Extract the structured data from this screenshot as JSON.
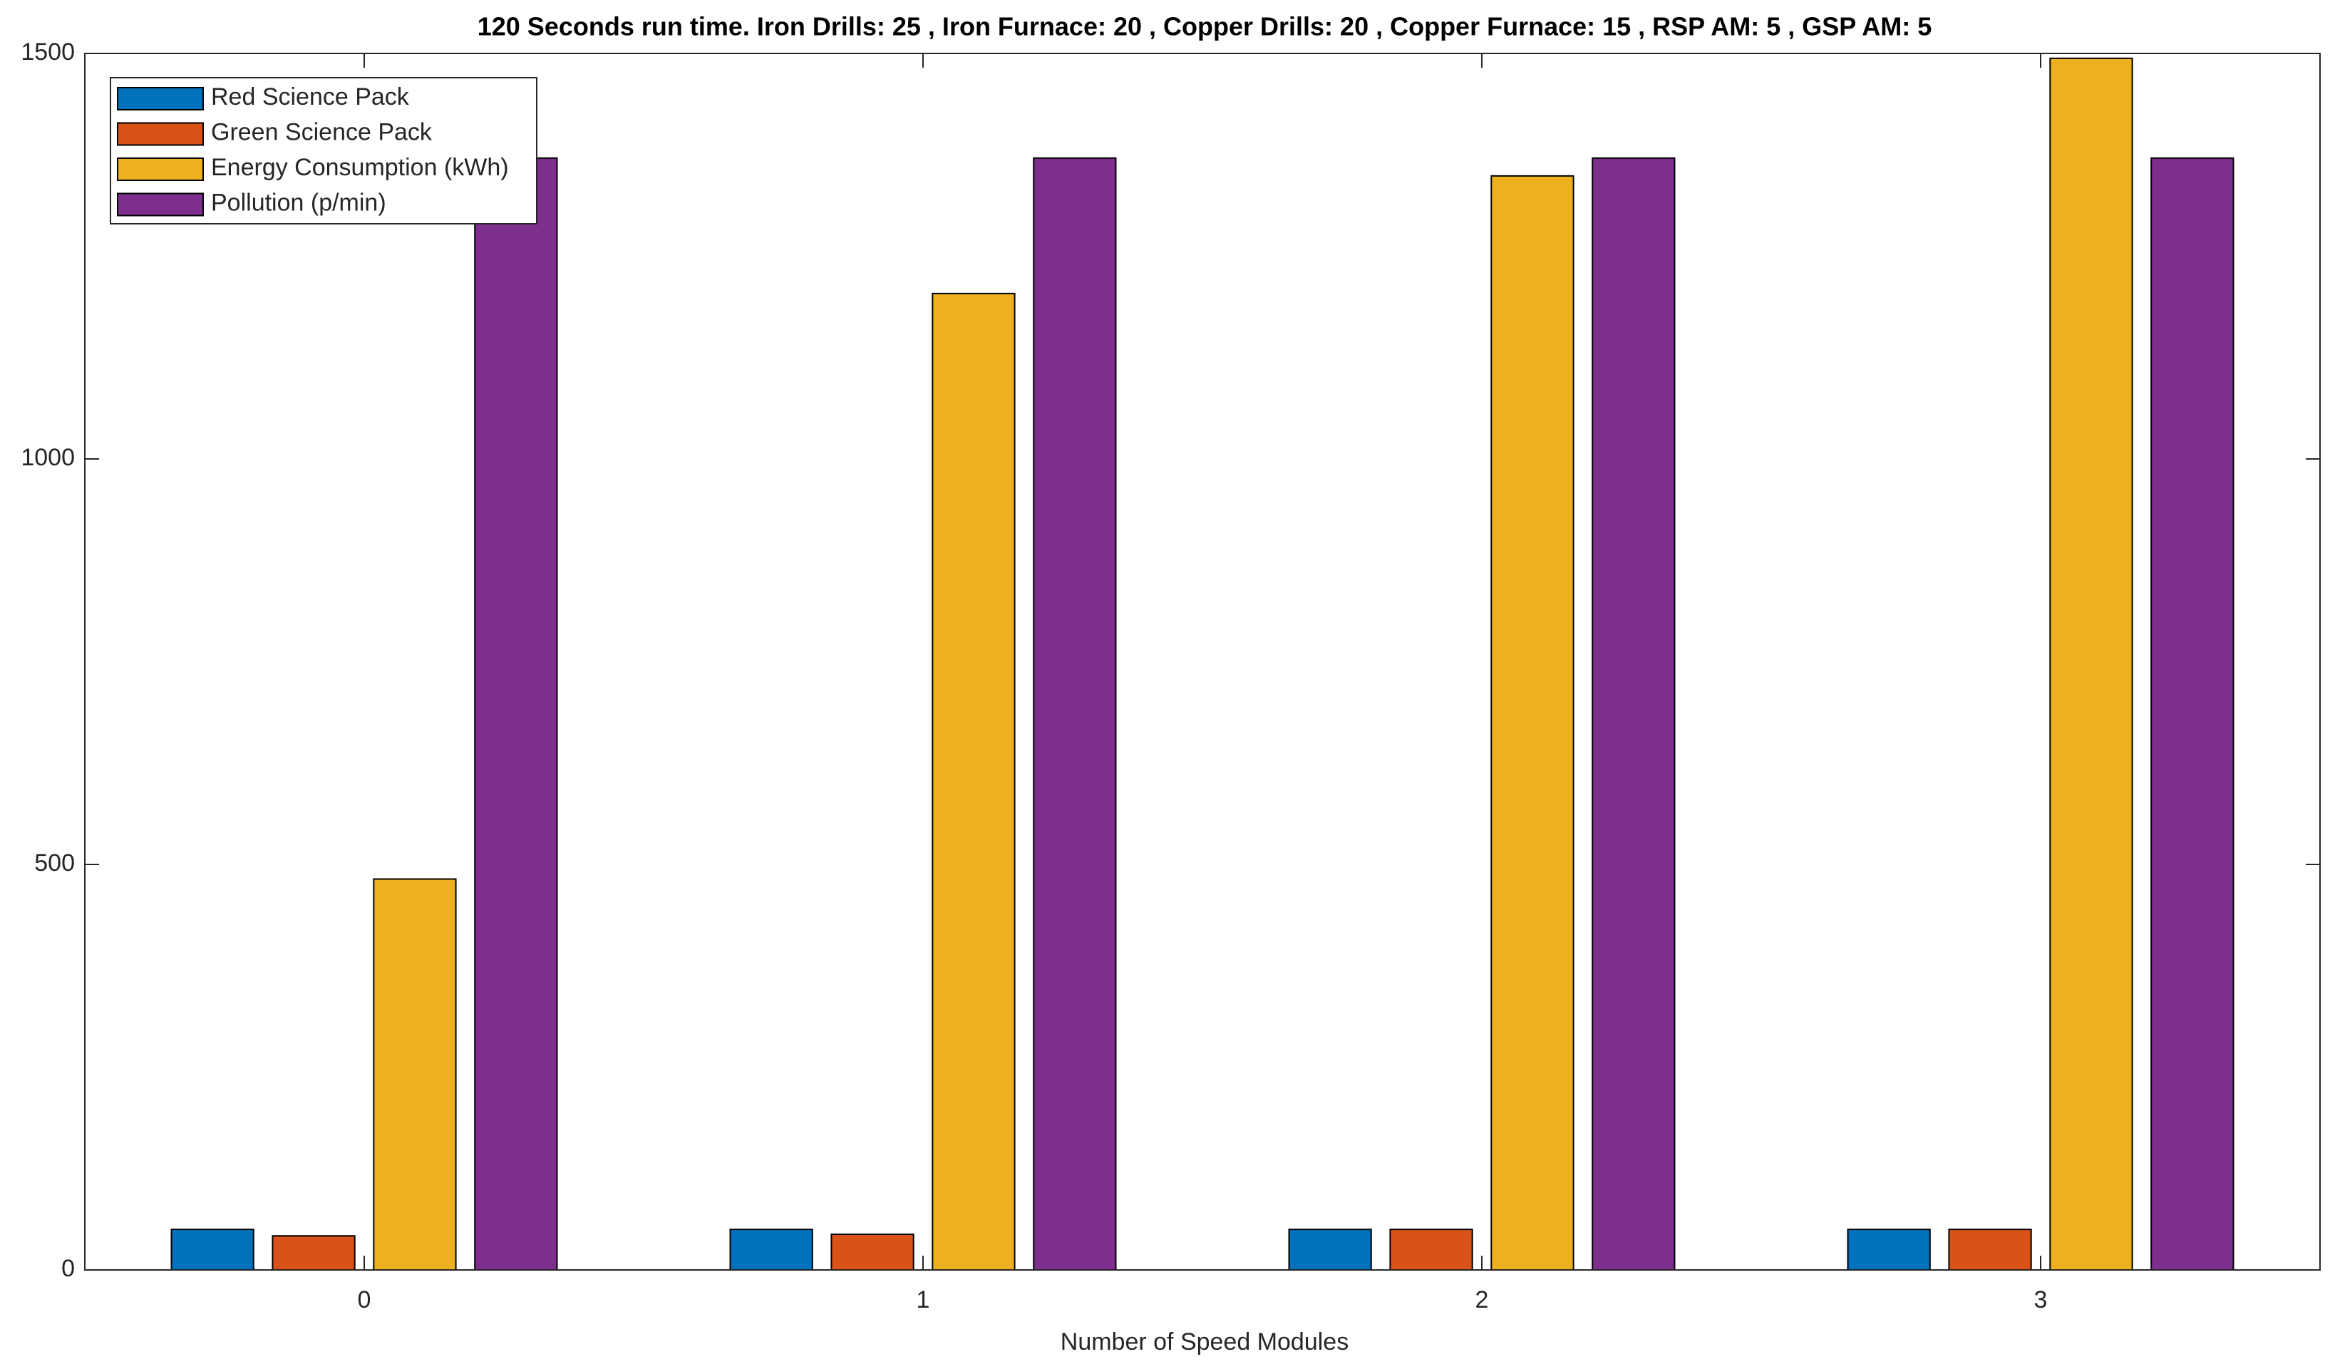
{
  "chart_data": {
    "type": "bar",
    "title": "120 Seconds run time. Iron Drills: 25 , Iron Furnace: 20 , Copper Drills: 20 , Copper Furnace: 15 , RSP AM: 5 , GSP AM: 5",
    "x_label": "Number of Speed Modules",
    "categories": [
      "0",
      "1",
      "2",
      "3"
    ],
    "series": [
      {
        "name": "Red Science Pack",
        "color": "#0072BD",
        "values": [
          50,
          50,
          50,
          50
        ]
      },
      {
        "name": "Green Science Pack",
        "color": "#D95319",
        "values": [
          42,
          44,
          50,
          50
        ]
      },
      {
        "name": "Energy Consumption (kWh)",
        "color": "#EDB120",
        "values": [
          482,
          1204,
          1349,
          1494
        ]
      },
      {
        "name": "Pollution (p/min)",
        "color": "#7E2F8E",
        "values": [
          1371,
          1371,
          1371,
          1371
        ]
      }
    ],
    "ylim": [
      0,
      1500
    ],
    "yticks": [
      0,
      500,
      1000,
      1500
    ],
    "grid": false,
    "legend": "upper left"
  }
}
